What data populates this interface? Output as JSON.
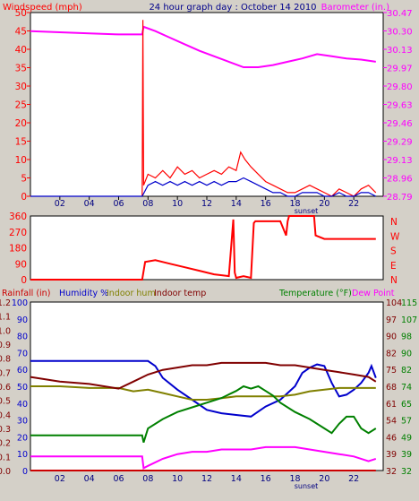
{
  "colors": {
    "background": "#d4d0c8",
    "plot": "#ffffff",
    "grid": "#c0c0c0",
    "red": "#ff0000",
    "magenta": "#ff00ff",
    "blue": "#0000cc",
    "wind_blue": "#0000cc",
    "olive": "#808000",
    "maroon": "#800000",
    "green": "#008000",
    "title_blue": "#00008b",
    "rain_red": "#cc0000"
  },
  "header": {
    "title": "24 hour graph day : October 14 2010"
  },
  "x_axis": {
    "tick_labels": [
      "02",
      "04",
      "06",
      "08",
      "10",
      "12",
      "14",
      "16",
      "18",
      "20",
      "22"
    ],
    "tick_hours": [
      2,
      4,
      6,
      8,
      10,
      12,
      14,
      16,
      18,
      20,
      22
    ],
    "sunset_label": "sunset",
    "sunset_hour": 17.5
  },
  "chart_data": [
    {
      "type": "line",
      "left_axis_label": "Windspeed (mph)",
      "right_axis_label": "Barometer (in.)",
      "left_ticks": [
        "0",
        "5",
        "10",
        "15",
        "20",
        "25",
        "30",
        "35",
        "40",
        "45",
        "50"
      ],
      "left_ylim": [
        0,
        50
      ],
      "right_ticks": [
        "28.79",
        "28.96",
        "29.13",
        "29.29",
        "29.46",
        "29.63",
        "29.80",
        "29.97",
        "30.13",
        "30.30",
        "30.47"
      ],
      "right_ylim": [
        28.79,
        30.47
      ],
      "xlim": [
        0,
        24
      ],
      "series": [
        {
          "axis": "right",
          "color": "magenta",
          "x": [
            0,
            2,
            4,
            6,
            7.6,
            7.7,
            8.5,
            9.5,
            10.5,
            11.5,
            12.5,
            13.5,
            14.5,
            15.5,
            16.5,
            17.5,
            18.5,
            19.5,
            20.5,
            21.5,
            22.5,
            23.5
          ],
          "y": [
            30.3,
            30.29,
            30.28,
            30.27,
            30.27,
            30.34,
            30.3,
            30.24,
            30.18,
            30.12,
            30.07,
            30.02,
            29.97,
            29.97,
            29.99,
            30.02,
            30.05,
            30.09,
            30.07,
            30.05,
            30.04,
            30.02
          ]
        },
        {
          "axis": "left",
          "color": "red",
          "x": [
            7.6,
            7.65,
            7.7,
            8,
            8.5,
            9,
            9.5,
            10,
            10.5,
            11,
            11.5,
            12,
            12.5,
            13,
            13.5,
            14,
            14.3,
            14.6,
            15,
            15.5,
            16,
            16.5,
            17,
            17.5,
            18,
            18.5,
            19,
            19.5,
            20,
            20.5,
            21,
            21.5,
            22,
            22.5,
            23,
            23.5
          ],
          "y": [
            0,
            48,
            3,
            6,
            5,
            7,
            5,
            8,
            6,
            7,
            5,
            6,
            7,
            6,
            8,
            7,
            12,
            10,
            8,
            6,
            4,
            3,
            2,
            1,
            1,
            2,
            3,
            2,
            1,
            0,
            2,
            1,
            0,
            2,
            3,
            1
          ]
        },
        {
          "axis": "left",
          "color": "wind_blue",
          "x": [
            0,
            7.6,
            8,
            8.5,
            9,
            9.5,
            10,
            10.5,
            11,
            11.5,
            12,
            12.5,
            13,
            13.5,
            14,
            14.5,
            15,
            15.5,
            16,
            16.5,
            17,
            17.5,
            18,
            18.5,
            19,
            19.5,
            20,
            20.5,
            21,
            21.5,
            22,
            22.5,
            23,
            23.5
          ],
          "y": [
            0,
            0,
            3,
            4,
            3,
            4,
            3,
            4,
            3,
            4,
            3,
            4,
            3,
            4,
            4,
            5,
            4,
            3,
            2,
            1,
            1,
            0,
            0,
            1,
            1,
            1,
            0,
            0,
            1,
            0,
            0,
            1,
            1,
            0
          ]
        }
      ]
    },
    {
      "type": "line",
      "left_ticks": [
        "0",
        "90",
        "180",
        "270",
        "360"
      ],
      "left_ylim": [
        0,
        360
      ],
      "right_ticks": [
        "N",
        "W",
        "S",
        "E",
        "N"
      ],
      "xlim": [
        0,
        24
      ],
      "series": [
        {
          "axis": "left",
          "color": "red",
          "x": [
            0,
            7.6,
            7.8,
            8.5,
            9.5,
            10.5,
            11.5,
            12.5,
            13.5,
            13.8,
            13.9,
            14,
            14.5,
            15,
            15.2,
            15.3,
            16,
            17,
            17.4,
            17.5,
            17.6,
            18.5,
            19.3,
            19.4,
            20,
            21,
            22,
            23,
            23.5
          ],
          "y": [
            0,
            0,
            100,
            110,
            90,
            70,
            50,
            30,
            20,
            340,
            40,
            10,
            20,
            10,
            320,
            330,
            330,
            330,
            250,
            330,
            360,
            360,
            360,
            250,
            230,
            230,
            230,
            230,
            230
          ]
        }
      ]
    },
    {
      "type": "line",
      "left_axis_label": "Rainfall (in)",
      "legend_entries": [
        "Humidity %",
        "Indoor hum",
        "Indoor temp"
      ],
      "right_axis_label": "Temperature (°F)",
      "right_legend": "Dew Point",
      "rain_ticks": [
        "0.0",
        "0.1",
        "0.2",
        "0.3",
        "0.4",
        "0.5",
        "0.6",
        "0.7",
        "0.8",
        "0.9",
        "1.0",
        "1.1",
        "1.2"
      ],
      "rain_ylim": [
        0,
        1.2
      ],
      "humidity_ticks": [
        "0",
        "10",
        "20",
        "30",
        "40",
        "50",
        "60",
        "70",
        "80",
        "90",
        "100"
      ],
      "humidity_ylim": [
        0,
        100
      ],
      "temp_ticks_inner": [
        "32",
        "39",
        "46",
        "54",
        "61",
        "68",
        "75",
        "82",
        "90",
        "97",
        "104"
      ],
      "temp_ticks_outer": [
        "32",
        "39",
        "49",
        "57",
        "65",
        "74",
        "82",
        "90",
        "98",
        "107",
        "115"
      ],
      "temp_ylim": [
        32,
        104
      ],
      "xlim": [
        0,
        24
      ],
      "series": [
        {
          "name": "Humidity %",
          "axis": "humidity",
          "color": "blue",
          "x": [
            0,
            2,
            4,
            6,
            7.6,
            8,
            8.5,
            9,
            10,
            11,
            12,
            13,
            14,
            15,
            15.5,
            16,
            17,
            18,
            18.5,
            19,
            19.5,
            20,
            20.5,
            21,
            21.5,
            22,
            22.5,
            23,
            23.2,
            23.5
          ],
          "y": [
            65,
            65,
            65,
            65,
            65,
            65,
            62,
            55,
            48,
            42,
            36,
            34,
            33,
            32,
            35,
            38,
            42,
            50,
            58,
            61,
            63,
            62,
            52,
            44,
            45,
            48,
            52,
            58,
            62,
            55
          ]
        },
        {
          "name": "Indoor hum",
          "axis": "humidity",
          "color": "olive",
          "x": [
            0,
            2,
            4,
            6,
            7,
            8,
            9,
            10,
            11,
            12,
            13,
            14,
            15,
            16,
            17,
            18,
            19,
            20,
            21,
            22,
            23,
            23.5
          ],
          "y": [
            50,
            50,
            49,
            49,
            47,
            48,
            46,
            44,
            42,
            42,
            43,
            44,
            44,
            44,
            44,
            45,
            47,
            48,
            49,
            49,
            49,
            49
          ]
        },
        {
          "name": "Indoor temp",
          "axis": "temp",
          "color": "maroon",
          "x": [
            0,
            2,
            4,
            6,
            7,
            8,
            9,
            10,
            11,
            12,
            13,
            14,
            15,
            16,
            17,
            18,
            19,
            20,
            21,
            22,
            23,
            23.5
          ],
          "y": [
            72,
            70,
            69,
            67,
            70,
            73,
            75,
            76,
            77,
            77,
            78,
            78,
            78,
            78,
            77,
            77,
            76,
            75,
            74,
            73,
            72,
            70
          ]
        },
        {
          "name": "Temperature (°F)",
          "axis": "temp",
          "color": "green",
          "x": [
            0,
            2,
            4,
            6,
            7.6,
            7.7,
            8,
            9,
            10,
            11,
            12,
            13,
            14,
            14.5,
            15,
            15.5,
            16,
            16.5,
            17,
            18,
            19,
            20,
            20.5,
            21,
            21.5,
            22,
            22.5,
            23,
            23.5
          ],
          "y": [
            47,
            47,
            47,
            47,
            47,
            44,
            50,
            54,
            57,
            59,
            61,
            63,
            66,
            68,
            67,
            68,
            66,
            64,
            61,
            57,
            54,
            50,
            48,
            52,
            55,
            55,
            50,
            48,
            50
          ]
        },
        {
          "name": "Dew Point",
          "axis": "temp",
          "color": "magenta",
          "x": [
            0,
            2,
            4,
            6,
            7.6,
            7.7,
            8,
            9,
            10,
            11,
            12,
            13,
            14,
            15,
            16,
            17,
            18,
            19,
            20,
            21,
            22,
            23,
            23.5
          ],
          "y": [
            38,
            38,
            38,
            38,
            38,
            33,
            34,
            37,
            39,
            40,
            40,
            41,
            41,
            41,
            42,
            42,
            42,
            41,
            40,
            39,
            38,
            36,
            37
          ]
        },
        {
          "name": "Rainfall (in)",
          "axis": "rain",
          "color": "rain_red",
          "x": [
            0,
            23.5
          ],
          "y": [
            0,
            0
          ]
        }
      ]
    }
  ]
}
